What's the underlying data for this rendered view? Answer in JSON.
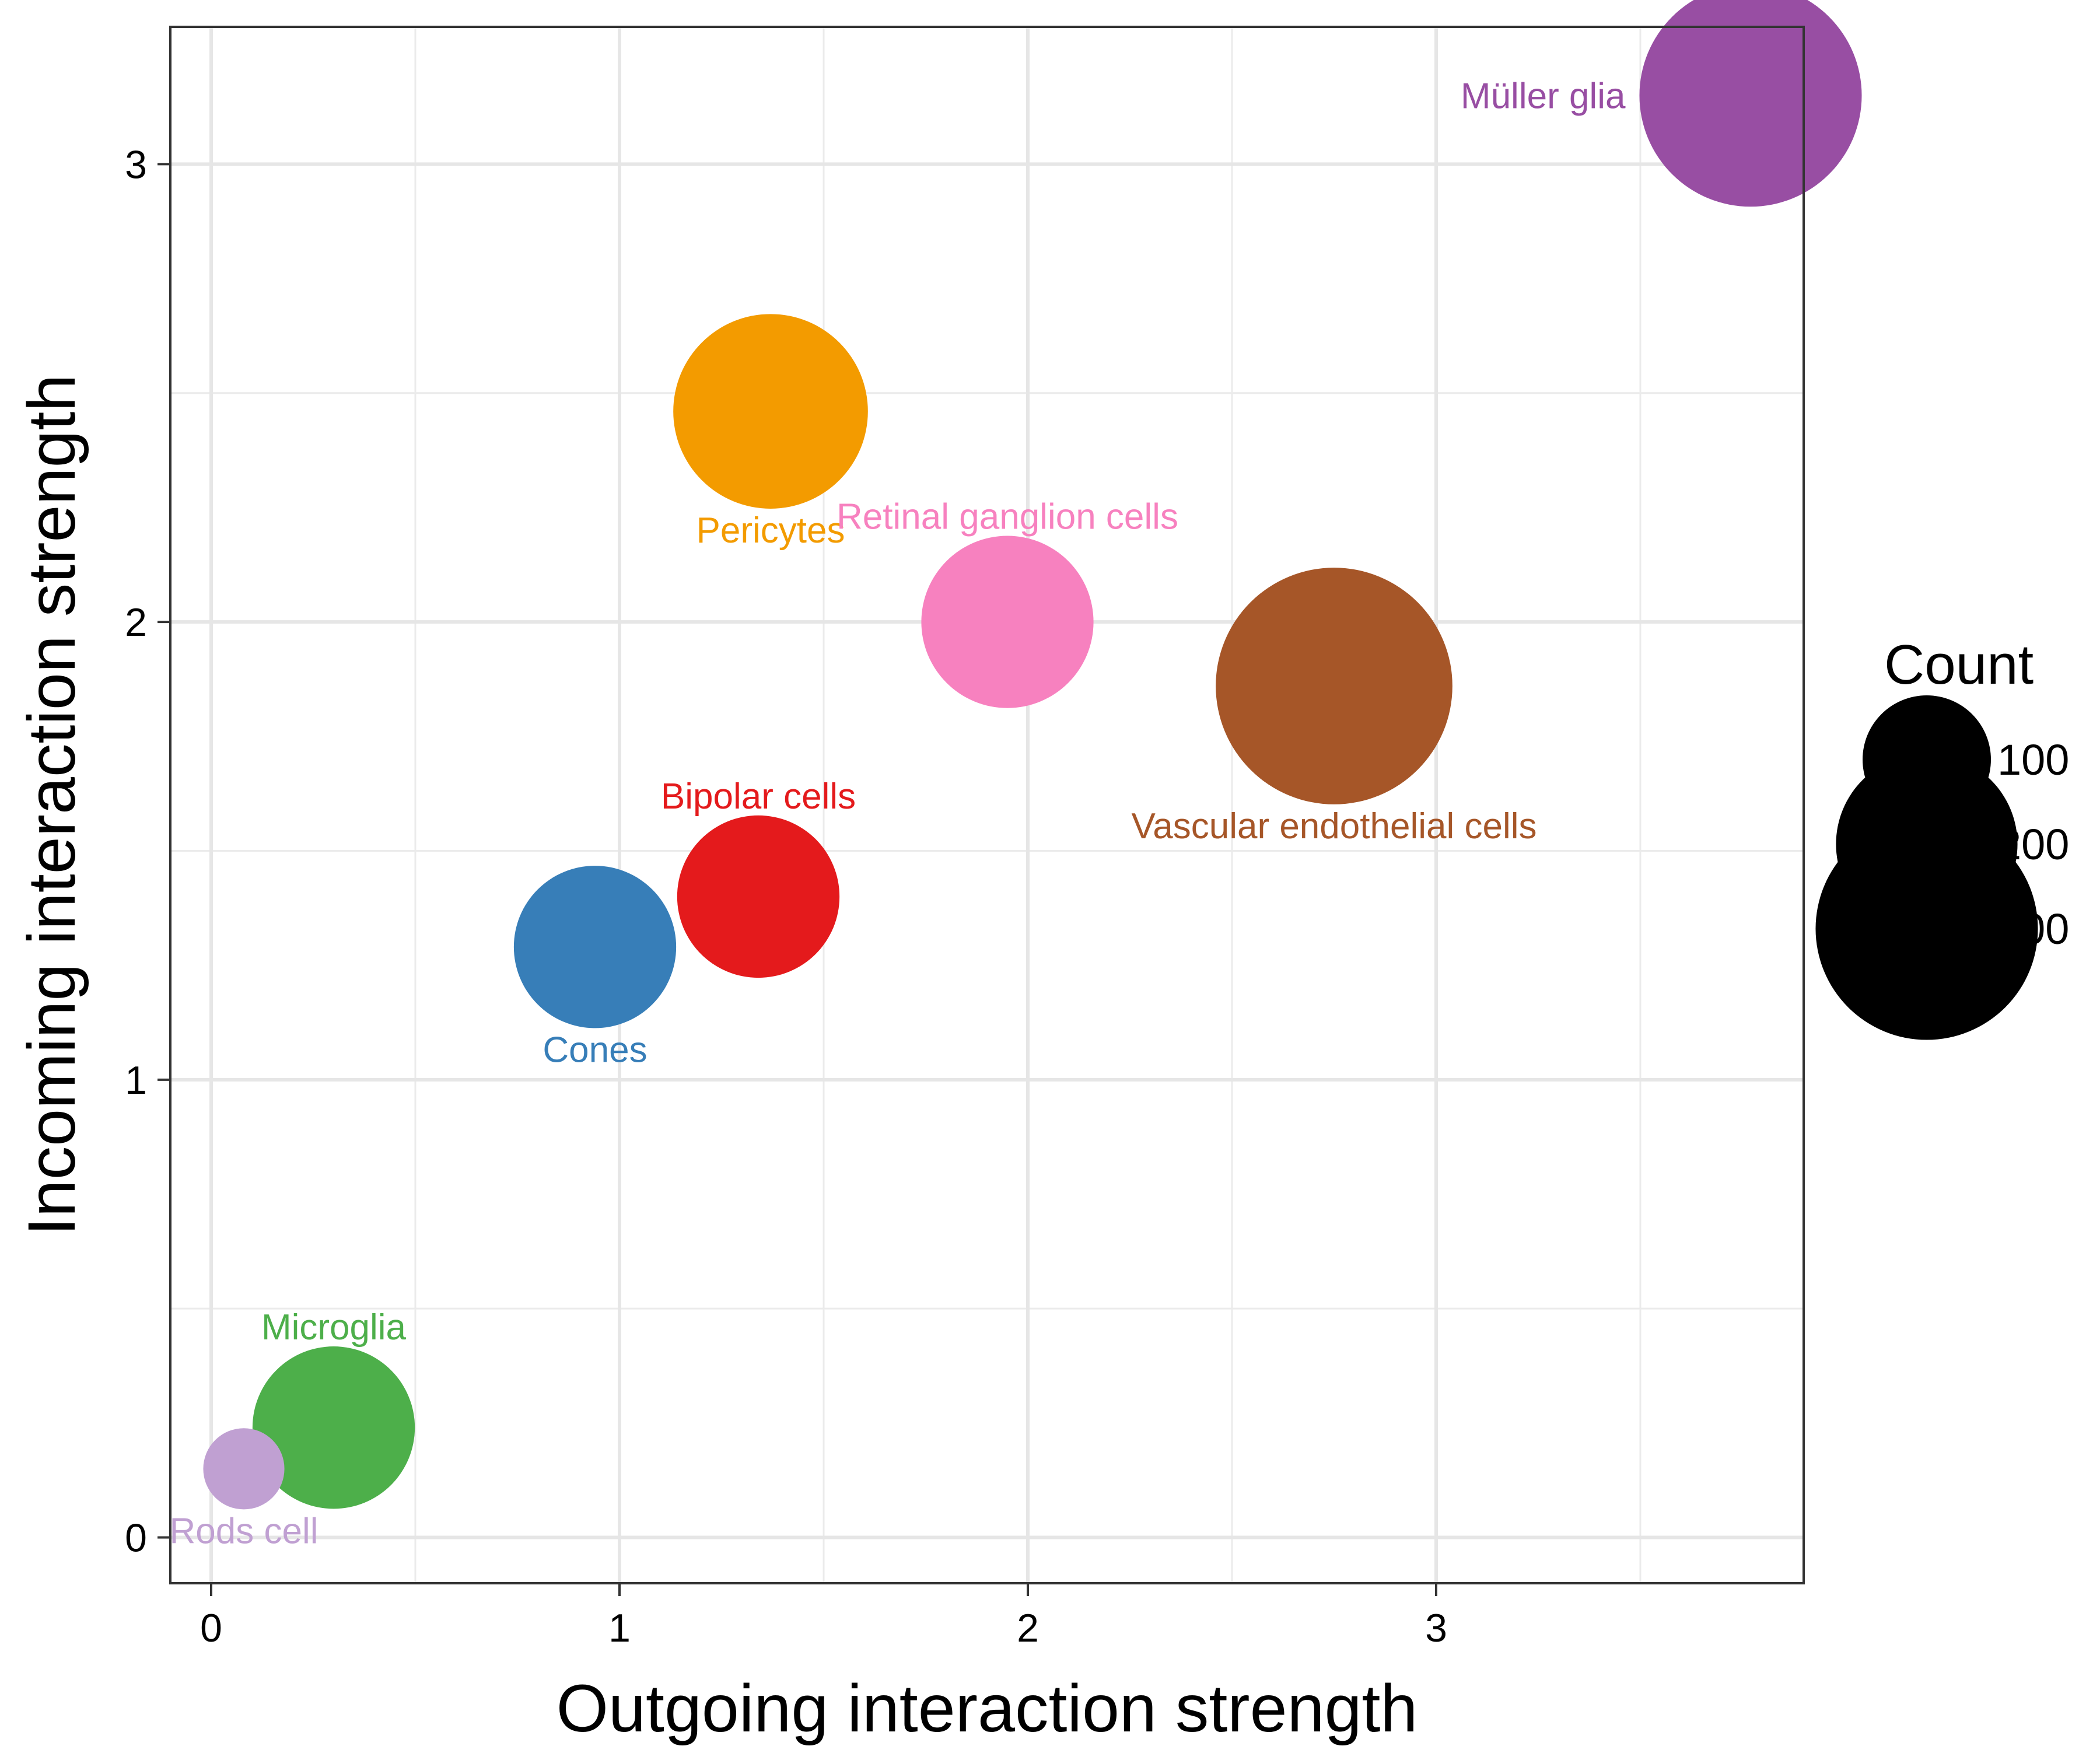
{
  "chart_data": {
    "type": "scatter",
    "xlabel": "Outgoing interaction strength",
    "ylabel": "Incoming interaction strength",
    "xlim": [
      -0.1,
      3.9
    ],
    "ylim": [
      -0.1,
      3.3
    ],
    "x_ticks": [
      0,
      1,
      2,
      3
    ],
    "y_ticks": [
      0,
      1,
      2,
      3
    ],
    "grid": true,
    "points": [
      {
        "label": "Müller glia",
        "x": 3.77,
        "y": 3.15,
        "count": 300,
        "color": "#984ea3",
        "label_pos": "left"
      },
      {
        "label": "Pericytes",
        "x": 1.37,
        "y": 2.46,
        "count": 230,
        "color": "#f39b00",
        "label_pos": "below"
      },
      {
        "label": "Retinal ganglion cells",
        "x": 1.95,
        "y": 2.0,
        "count": 180,
        "color": "#f781bf",
        "label_pos": "above"
      },
      {
        "label": "Vascular endothelial cells",
        "x": 2.75,
        "y": 1.86,
        "count": 340,
        "color": "#a65628",
        "label_pos": "below"
      },
      {
        "label": "Bipolar cells",
        "x": 1.34,
        "y": 1.4,
        "count": 160,
        "color": "#e41a1c",
        "label_pos": "above"
      },
      {
        "label": "Cones",
        "x": 0.94,
        "y": 1.29,
        "count": 160,
        "color": "#377eb8",
        "label_pos": "below"
      },
      {
        "label": "Microglia",
        "x": 0.3,
        "y": 0.24,
        "count": 160,
        "color": "#4daf4a",
        "label_pos": "above"
      },
      {
        "label": "Rods cell",
        "x": 0.08,
        "y": 0.15,
        "count": 40,
        "color": "#c0a0d2",
        "label_pos": "below"
      }
    ],
    "legend": {
      "title": "Count",
      "position": "right",
      "entries": [
        {
          "label": "100",
          "count": 100
        },
        {
          "label": "200",
          "count": 200
        },
        {
          "label": "300",
          "count": 300
        }
      ]
    }
  }
}
